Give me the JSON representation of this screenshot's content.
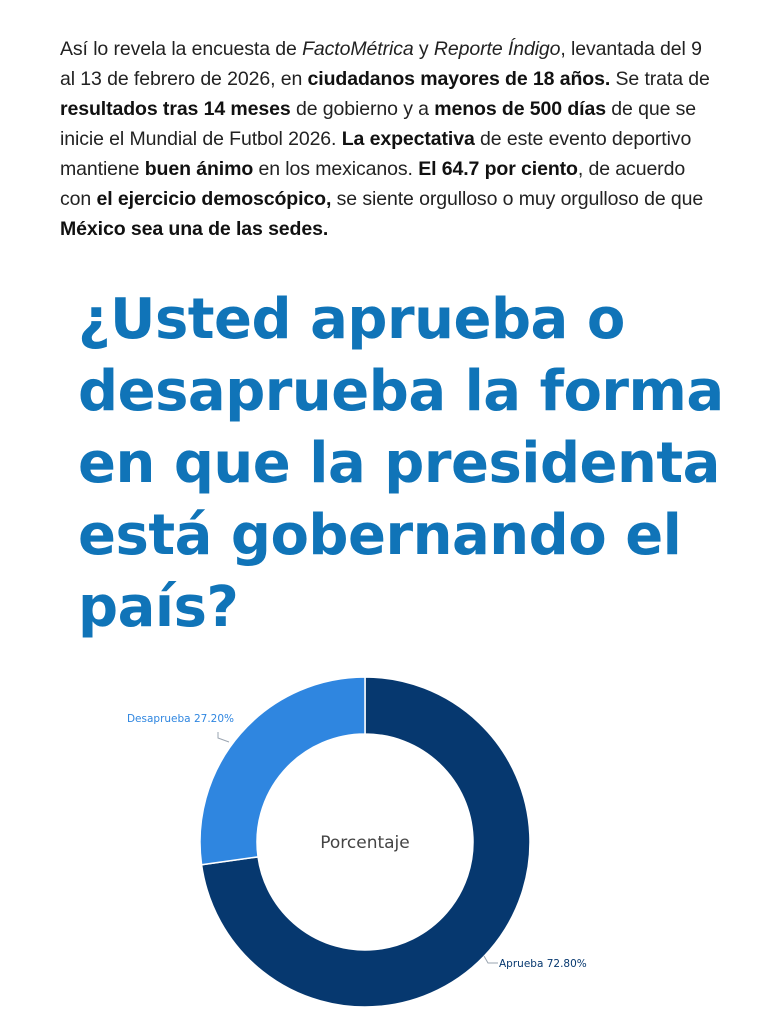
{
  "article": {
    "p1": "Así lo revela la encuesta de ",
    "src1": "FactoMétrica",
    "p2": " y ",
    "src2": "Reporte Índigo",
    "p3": ", levantada del 9 al 13 de febrero de 2026, en ",
    "b1": "ciudadanos mayores de 18 años.",
    "p4": " Se trata de ",
    "b2": "resultados tras 14 meses",
    "p5": " de gobierno y a ",
    "b3": "menos de 500 días",
    "p6": " de que se inicie el Mundial de Futbol 2026. ",
    "b4": "La expectativa",
    "p7": " de este evento deportivo mantiene ",
    "b5": "buen ánimo",
    "p8": " en los mexicanos. ",
    "b6": "El 64.7 por ciento",
    "p9": ", de acuerdo con ",
    "b7": "el ejercicio demoscópico,",
    "p10": " se siente orgulloso o muy orgulloso de que ",
    "b8": "México sea una de las sedes."
  },
  "headline": "¿Usted aprueba o desaprueba la forma en que la presidenta está gobernando el país?",
  "colors": {
    "headline": "#1074b8",
    "aprueba": "#06386f",
    "desaprueba": "#2f86e0"
  },
  "chart_data": {
    "type": "pie",
    "title": "",
    "center_label": "Porcentaje",
    "slices": [
      {
        "label": "Aprueba",
        "value": 72.8,
        "label_text": "Aprueba 72.80%",
        "color": "#06386f"
      },
      {
        "label": "Desaprueba",
        "value": 27.2,
        "label_text": "Desaprueba 27.20%",
        "color": "#2f86e0"
      }
    ]
  }
}
